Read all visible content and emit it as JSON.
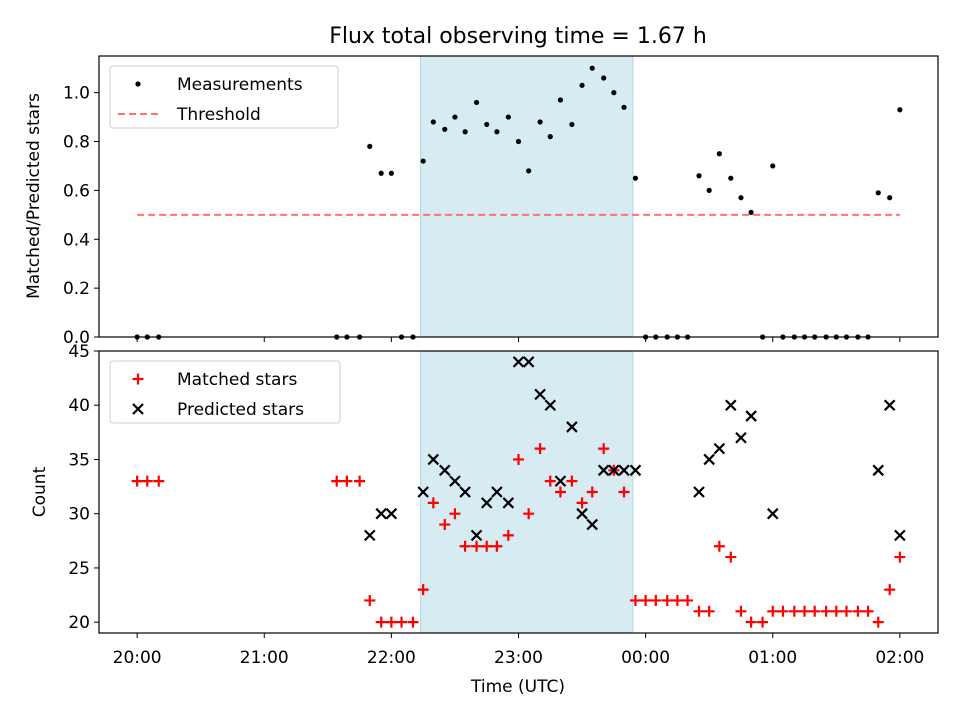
{
  "chart_data": [
    {
      "type": "scatter",
      "title": "Flux total observing time = 1.67 h",
      "xlabel": "",
      "ylabel": "Matched/Predicted stars",
      "xlim": [
        -0.3,
        6.3
      ],
      "ylim": [
        0,
        1.15
      ],
      "yticks": [
        0.0,
        0.2,
        0.4,
        0.6,
        0.8,
        1.0
      ],
      "ytick_labels": [
        "0.0",
        "0.2",
        "0.4",
        "0.6",
        "0.8",
        "1.0"
      ],
      "highlight_span": [
        2.23,
        3.9
      ],
      "highlight_color": "#add8e6",
      "legend": "top-left",
      "series": [
        {
          "name": "Measurements",
          "marker": "dot",
          "color": "#000000",
          "points": [
            [
              0.0,
              0
            ],
            [
              0.08,
              0
            ],
            [
              0.17,
              0
            ],
            [
              1.57,
              0
            ],
            [
              1.65,
              0
            ],
            [
              1.75,
              0
            ],
            [
              1.83,
              0.78
            ],
            [
              1.92,
              0.67
            ],
            [
              2.0,
              0.67
            ],
            [
              2.08,
              0
            ],
            [
              2.17,
              0
            ],
            [
              2.25,
              0.72
            ],
            [
              2.33,
              0.88
            ],
            [
              2.42,
              0.85
            ],
            [
              2.5,
              0.9
            ],
            [
              2.58,
              0.84
            ],
            [
              2.67,
              0.96
            ],
            [
              2.75,
              0.87
            ],
            [
              2.83,
              0.84
            ],
            [
              2.92,
              0.9
            ],
            [
              3.0,
              0.8
            ],
            [
              3.08,
              0.68
            ],
            [
              3.17,
              0.88
            ],
            [
              3.25,
              0.82
            ],
            [
              3.33,
              0.97
            ],
            [
              3.42,
              0.87
            ],
            [
              3.5,
              1.03
            ],
            [
              3.58,
              1.1
            ],
            [
              3.67,
              1.06
            ],
            [
              3.75,
              1.0
            ],
            [
              3.83,
              0.94
            ],
            [
              3.92,
              0.65
            ],
            [
              4.0,
              0
            ],
            [
              4.08,
              0
            ],
            [
              4.17,
              0
            ],
            [
              4.25,
              0
            ],
            [
              4.33,
              0
            ],
            [
              4.42,
              0.66
            ],
            [
              4.5,
              0.6
            ],
            [
              4.58,
              0.75
            ],
            [
              4.67,
              0.65
            ],
            [
              4.75,
              0.57
            ],
            [
              4.83,
              0.51
            ],
            [
              4.92,
              0
            ],
            [
              5.0,
              0.7
            ],
            [
              5.08,
              0
            ],
            [
              5.17,
              0
            ],
            [
              5.25,
              0
            ],
            [
              5.33,
              0
            ],
            [
              5.42,
              0
            ],
            [
              5.5,
              0
            ],
            [
              5.58,
              0
            ],
            [
              5.67,
              0
            ],
            [
              5.75,
              0
            ],
            [
              5.83,
              0.59
            ],
            [
              5.92,
              0.57
            ],
            [
              6.0,
              0.93
            ]
          ]
        },
        {
          "name": "Threshold",
          "line": "dashed",
          "color": "#ff7070",
          "points": [
            [
              0.0,
              0.5
            ],
            [
              6.0,
              0.5
            ]
          ]
        }
      ]
    },
    {
      "type": "scatter",
      "title": "",
      "xlabel": "Time (UTC)",
      "ylabel": "Count",
      "xlim": [
        -0.3,
        6.3
      ],
      "ylim": [
        19,
        45
      ],
      "yticks": [
        20,
        25,
        30,
        35,
        40,
        45
      ],
      "ytick_labels": [
        "20",
        "25",
        "30",
        "35",
        "40",
        "45"
      ],
      "xticks": [
        0,
        1,
        2,
        3,
        4,
        5,
        6
      ],
      "xtick_labels": [
        "20:00",
        "21:00",
        "22:00",
        "23:00",
        "00:00",
        "01:00",
        "02:00"
      ],
      "highlight_span": [
        2.23,
        3.9
      ],
      "highlight_color": "#add8e6",
      "legend": "top-left",
      "series": [
        {
          "name": "Matched stars",
          "marker": "plus",
          "color": "#ff0000",
          "points": [
            [
              0.0,
              33
            ],
            [
              0.08,
              33
            ],
            [
              0.17,
              33
            ],
            [
              1.57,
              33
            ],
            [
              1.65,
              33
            ],
            [
              1.75,
              33
            ],
            [
              1.83,
              22
            ],
            [
              1.92,
              20
            ],
            [
              2.0,
              20
            ],
            [
              2.08,
              20
            ],
            [
              2.17,
              20
            ],
            [
              2.25,
              23
            ],
            [
              2.33,
              31
            ],
            [
              2.42,
              29
            ],
            [
              2.5,
              30
            ],
            [
              2.58,
              27
            ],
            [
              2.67,
              27
            ],
            [
              2.75,
              27
            ],
            [
              2.83,
              27
            ],
            [
              2.92,
              28
            ],
            [
              3.0,
              35
            ],
            [
              3.08,
              30
            ],
            [
              3.17,
              36
            ],
            [
              3.25,
              33
            ],
            [
              3.33,
              32
            ],
            [
              3.42,
              33
            ],
            [
              3.5,
              31
            ],
            [
              3.58,
              32
            ],
            [
              3.67,
              36
            ],
            [
              3.75,
              34
            ],
            [
              3.83,
              32
            ],
            [
              3.92,
              22
            ],
            [
              4.0,
              22
            ],
            [
              4.08,
              22
            ],
            [
              4.17,
              22
            ],
            [
              4.25,
              22
            ],
            [
              4.33,
              22
            ],
            [
              4.42,
              21
            ],
            [
              4.5,
              21
            ],
            [
              4.58,
              27
            ],
            [
              4.67,
              26
            ],
            [
              4.75,
              21
            ],
            [
              4.83,
              20
            ],
            [
              4.92,
              20
            ],
            [
              5.0,
              21
            ],
            [
              5.08,
              21
            ],
            [
              5.17,
              21
            ],
            [
              5.25,
              21
            ],
            [
              5.33,
              21
            ],
            [
              5.42,
              21
            ],
            [
              5.5,
              21
            ],
            [
              5.58,
              21
            ],
            [
              5.67,
              21
            ],
            [
              5.75,
              21
            ],
            [
              5.83,
              20
            ],
            [
              5.92,
              23
            ],
            [
              6.0,
              26
            ]
          ]
        },
        {
          "name": "Predicted stars",
          "marker": "x",
          "color": "#000000",
          "points": [
            [
              1.83,
              28
            ],
            [
              1.92,
              30
            ],
            [
              2.0,
              30
            ],
            [
              2.25,
              32
            ],
            [
              2.33,
              35
            ],
            [
              2.42,
              34
            ],
            [
              2.5,
              33
            ],
            [
              2.58,
              32
            ],
            [
              2.67,
              28
            ],
            [
              2.75,
              31
            ],
            [
              2.83,
              32
            ],
            [
              2.92,
              31
            ],
            [
              3.0,
              44
            ],
            [
              3.08,
              44
            ],
            [
              3.17,
              41
            ],
            [
              3.25,
              40
            ],
            [
              3.33,
              33
            ],
            [
              3.42,
              38
            ],
            [
              3.5,
              30
            ],
            [
              3.58,
              29
            ],
            [
              3.67,
              34
            ],
            [
              3.75,
              34
            ],
            [
              3.83,
              34
            ],
            [
              3.92,
              34
            ],
            [
              4.42,
              32
            ],
            [
              4.5,
              35
            ],
            [
              4.58,
              36
            ],
            [
              4.67,
              40
            ],
            [
              4.75,
              37
            ],
            [
              4.83,
              39
            ],
            [
              5.0,
              30
            ],
            [
              5.83,
              34
            ],
            [
              5.92,
              40
            ],
            [
              6.0,
              28
            ]
          ]
        }
      ]
    }
  ]
}
